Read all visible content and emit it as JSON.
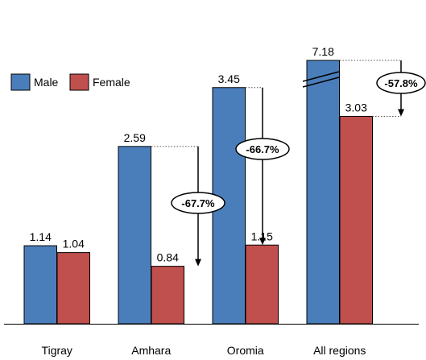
{
  "chart_data": {
    "type": "bar",
    "categories": [
      "Tigray",
      "Amhara",
      "Oromia",
      "All regions"
    ],
    "series": [
      {
        "name": "Male",
        "values": [
          1.14,
          2.59,
          3.45,
          7.18
        ]
      },
      {
        "name": "Female",
        "values": [
          1.04,
          0.84,
          1.15,
          3.03
        ]
      }
    ],
    "value_labels": {
      "Male": [
        "1.14",
        "2.59",
        "3.45",
        "7.18"
      ],
      "Female": [
        "1.04",
        "0.84",
        "1.15",
        "3.03"
      ]
    },
    "annotations": [
      "",
      "-67.7%",
      "-66.7%",
      "-57.8%"
    ],
    "axis_break": "All regions male bar",
    "title": "",
    "xlabel": "",
    "ylabel": "",
    "grid": false,
    "legend": "top-left",
    "colors": {
      "Male": "#4a7ebb",
      "Female": "#c0504d",
      "edge": "#000000"
    }
  }
}
